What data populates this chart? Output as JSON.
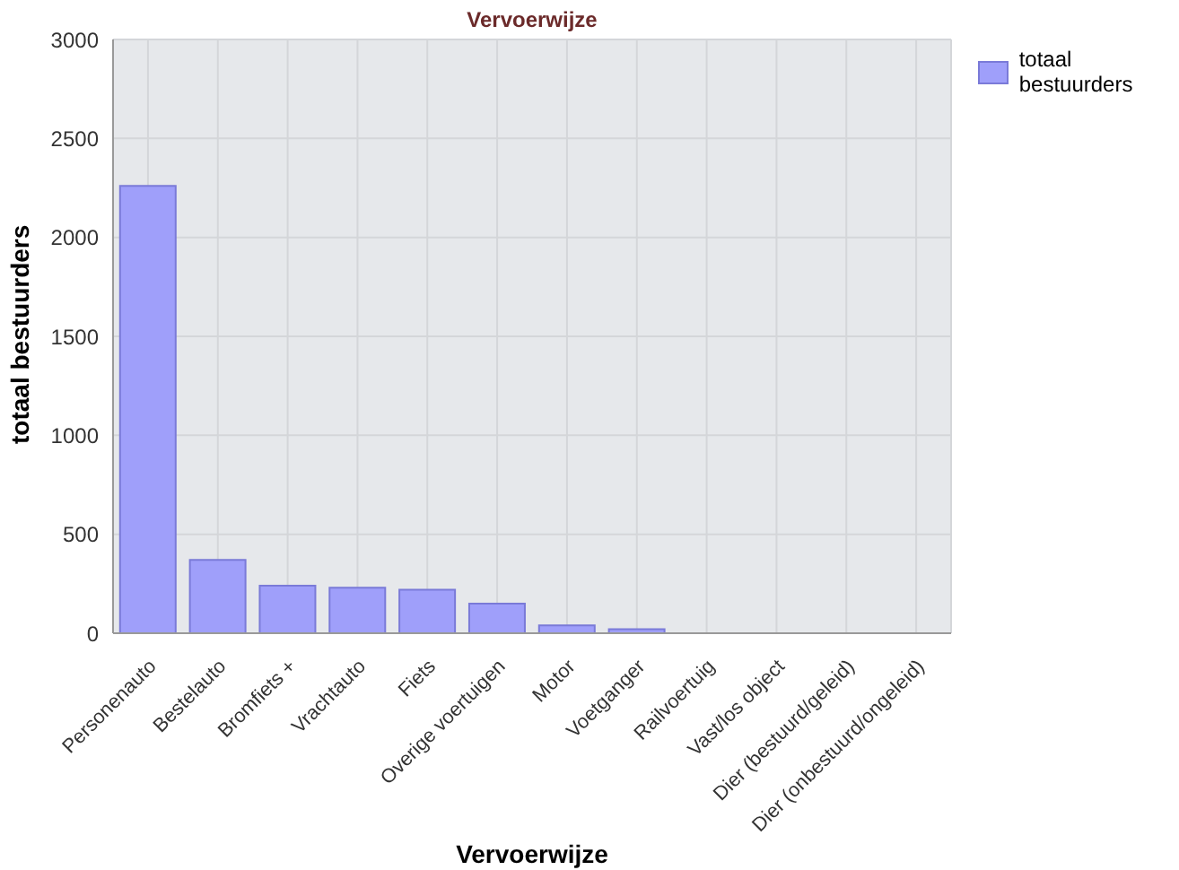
{
  "chart_data": {
    "type": "bar",
    "title": "Vervoerwijze",
    "xlabel": "Vervoerwijze",
    "ylabel": "totaal bestuurders",
    "categories": [
      "Personenauto",
      "Bestelauto",
      "Bromfiets +",
      "Vrachtauto",
      "Fiets",
      "Overige voertuigen",
      "Motor",
      "Voetganger",
      "Railvoertuig",
      "Vast/los object",
      "Dier (bestuurd/geleid)",
      "Dier (onbestuurd/ongeleid)"
    ],
    "series": [
      {
        "name": "totaal bestuurders",
        "color": "#9f9ffa",
        "values": [
          2260,
          370,
          240,
          230,
          220,
          150,
          40,
          20,
          0,
          0,
          0,
          0
        ]
      }
    ],
    "ylim": [
      0,
      3000
    ],
    "yticks": [
      0,
      500,
      1000,
      1500,
      2000,
      2500,
      3000
    ],
    "grid": true,
    "legend": "top right"
  }
}
